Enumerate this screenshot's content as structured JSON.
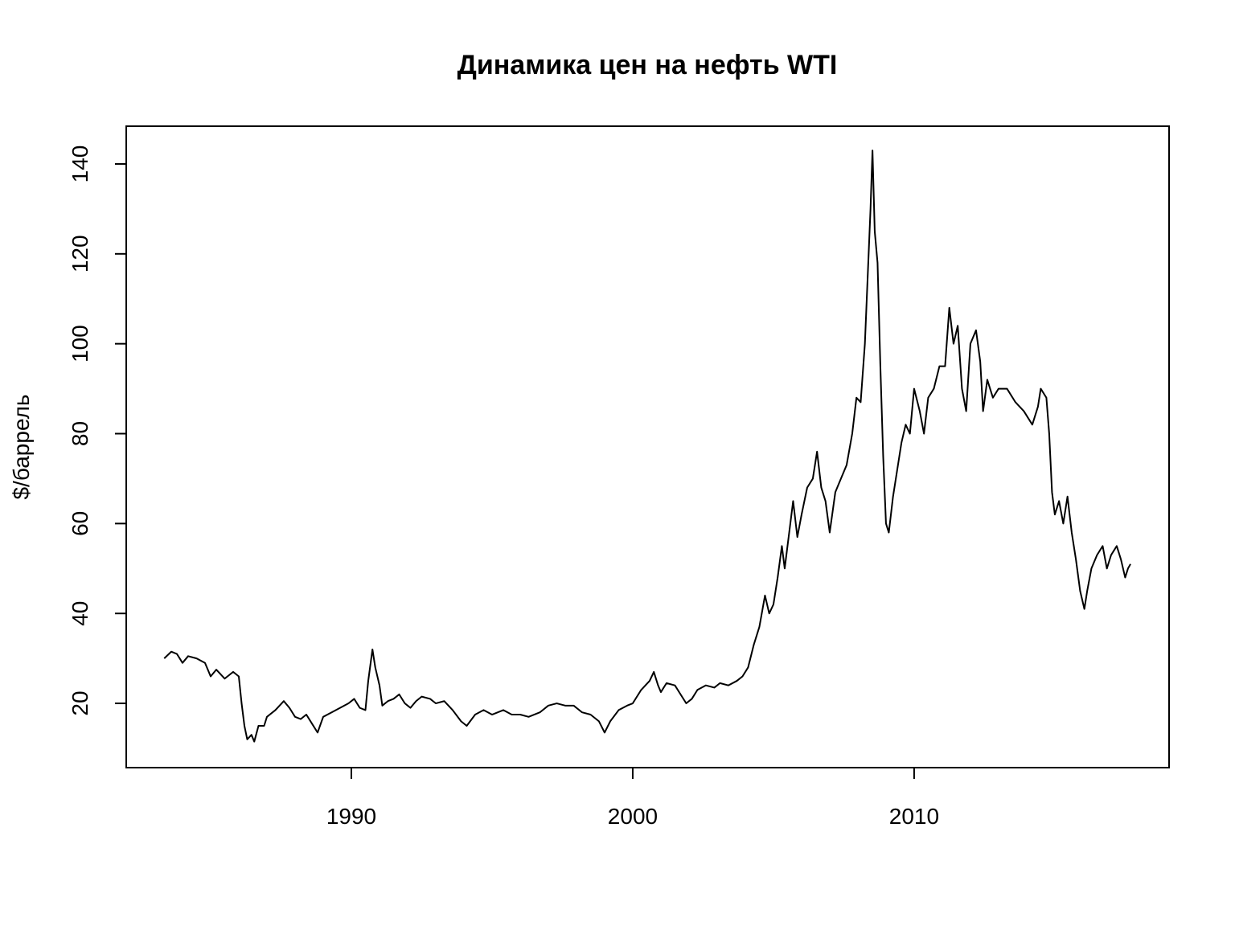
{
  "chart_data": {
    "type": "line",
    "title": "Динамика цен на нефть WTI",
    "ylabel": "$/баррель",
    "x": [
      1983.35,
      1983.6,
      1983.8,
      1984.0,
      1984.2,
      1984.5,
      1984.8,
      1985.0,
      1985.2,
      1985.5,
      1985.8,
      1986.0,
      1986.1,
      1986.2,
      1986.3,
      1986.45,
      1986.55,
      1986.7,
      1986.9,
      1987.0,
      1987.3,
      1987.6,
      1987.8,
      1988.0,
      1988.2,
      1988.4,
      1988.6,
      1988.8,
      1989.0,
      1989.3,
      1989.6,
      1989.9,
      1990.1,
      1990.3,
      1990.5,
      1990.6,
      1990.75,
      1990.85,
      1991.0,
      1991.1,
      1991.3,
      1991.5,
      1991.7,
      1991.9,
      1992.1,
      1992.3,
      1992.5,
      1992.8,
      1993.0,
      1993.3,
      1993.6,
      1993.9,
      1994.1,
      1994.4,
      1994.7,
      1995.0,
      1995.4,
      1995.7,
      1996.0,
      1996.3,
      1996.7,
      1997.0,
      1997.3,
      1997.6,
      1997.9,
      1998.2,
      1998.5,
      1998.8,
      1999.0,
      1999.2,
      1999.5,
      1999.8,
      2000.0,
      2000.3,
      2000.6,
      2000.75,
      2000.9,
      2001.0,
      2001.2,
      2001.5,
      2001.7,
      2001.9,
      2002.1,
      2002.3,
      2002.6,
      2002.9,
      2003.1,
      2003.4,
      2003.7,
      2003.9,
      2004.1,
      2004.3,
      2004.5,
      2004.7,
      2004.85,
      2005.0,
      2005.15,
      2005.3,
      2005.4,
      2005.6,
      2005.7,
      2005.85,
      2006.0,
      2006.2,
      2006.4,
      2006.55,
      2006.7,
      2006.85,
      2007.0,
      2007.2,
      2007.4,
      2007.6,
      2007.8,
      2007.95,
      2008.1,
      2008.25,
      2008.35,
      2008.45,
      2008.52,
      2008.6,
      2008.7,
      2008.8,
      2008.9,
      2009.0,
      2009.1,
      2009.25,
      2009.4,
      2009.55,
      2009.7,
      2009.85,
      2010.0,
      2010.2,
      2010.35,
      2010.5,
      2010.7,
      2010.9,
      2011.1,
      2011.25,
      2011.4,
      2011.55,
      2011.7,
      2011.85,
      2012.0,
      2012.2,
      2012.35,
      2012.45,
      2012.6,
      2012.8,
      2013.0,
      2013.3,
      2013.6,
      2013.9,
      2014.2,
      2014.4,
      2014.5,
      2014.7,
      2014.8,
      2014.9,
      2015.0,
      2015.15,
      2015.3,
      2015.45,
      2015.6,
      2015.75,
      2015.9,
      2016.05,
      2016.15,
      2016.3,
      2016.5,
      2016.7,
      2016.85,
      2017.0,
      2017.2,
      2017.35,
      2017.5,
      2017.6,
      2017.69
    ],
    "series": [
      {
        "color": "#000000",
        "values": [
          30,
          31.5,
          31,
          29,
          30.5,
          30,
          29,
          26,
          27.5,
          25.5,
          27,
          26,
          20,
          15,
          12,
          13,
          11.5,
          15,
          15,
          17,
          18.5,
          20.5,
          19,
          17,
          16.5,
          17.5,
          15.5,
          13.5,
          17,
          18,
          19,
          20,
          21,
          19,
          18.5,
          25,
          32,
          28,
          24,
          19.5,
          20.5,
          21,
          22,
          20,
          19,
          20.5,
          21.5,
          21,
          20,
          20.5,
          18.5,
          16,
          15,
          17.5,
          18.5,
          17.5,
          18.5,
          17.5,
          17.5,
          17,
          18,
          19.5,
          20,
          19.5,
          19.5,
          18,
          17.5,
          16,
          13.5,
          16,
          18.5,
          19.5,
          20,
          23,
          25,
          27,
          24,
          22.5,
          24.5,
          24,
          22,
          20,
          21,
          23,
          24,
          23.5,
          24.5,
          24,
          25,
          26,
          28,
          33,
          37,
          44,
          40,
          42,
          48,
          55,
          50,
          60,
          65,
          57,
          62,
          68,
          70,
          76,
          68,
          65,
          58,
          67,
          70,
          73,
          80,
          88,
          87,
          100,
          115,
          130,
          143,
          125,
          118,
          95,
          75,
          60,
          58,
          66,
          72,
          78,
          82,
          80,
          90,
          85,
          80,
          88,
          90,
          95,
          95,
          108,
          100,
          104,
          90,
          85,
          100,
          103,
          96,
          85,
          92,
          88,
          90,
          90,
          87,
          85,
          82,
          86,
          90,
          88,
          80,
          67,
          62,
          65,
          60,
          66,
          58,
          52,
          45,
          41,
          45,
          50,
          53,
          55,
          50,
          53,
          55,
          52,
          48,
          50,
          51
        ]
      }
    ],
    "xlim": [
      1982.0,
      2019.06
    ],
    "ylim": [
      5.7,
      148.4
    ],
    "xticks": [
      1990,
      2000,
      2010
    ],
    "yticks": [
      20,
      40,
      60,
      80,
      100,
      120,
      140
    ]
  }
}
